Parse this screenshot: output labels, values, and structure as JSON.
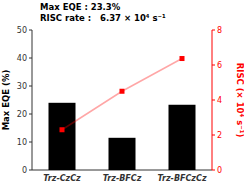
{
  "chart_data": {
    "type": "bar",
    "categories": [
      "Trz-CzCz",
      "Trz-BFCz",
      "Trz-BFCzCz"
    ],
    "ylabel": "Max EQE (%)",
    "y2label": "RISC (× 10⁴ s⁻¹)",
    "annotations": [
      "Max EQE : 23.3%",
      "RISC rate :   6.37 × 10⁴ s⁻¹"
    ],
    "ylim": [
      0,
      50
    ],
    "yticks": [
      0,
      10,
      20,
      30,
      40,
      50
    ],
    "y2lim": [
      0,
      8
    ],
    "y2ticks": [
      0,
      2,
      4,
      6,
      8
    ],
    "series": [
      {
        "type": "bar",
        "color": "#000000",
        "values": [
          24.0,
          11.5,
          23.3
        ]
      },
      {
        "type": "line",
        "axis": "y2",
        "color": "#ff0000",
        "marker": "square",
        "values": [
          2.3,
          4.5,
          6.37
        ]
      }
    ]
  }
}
